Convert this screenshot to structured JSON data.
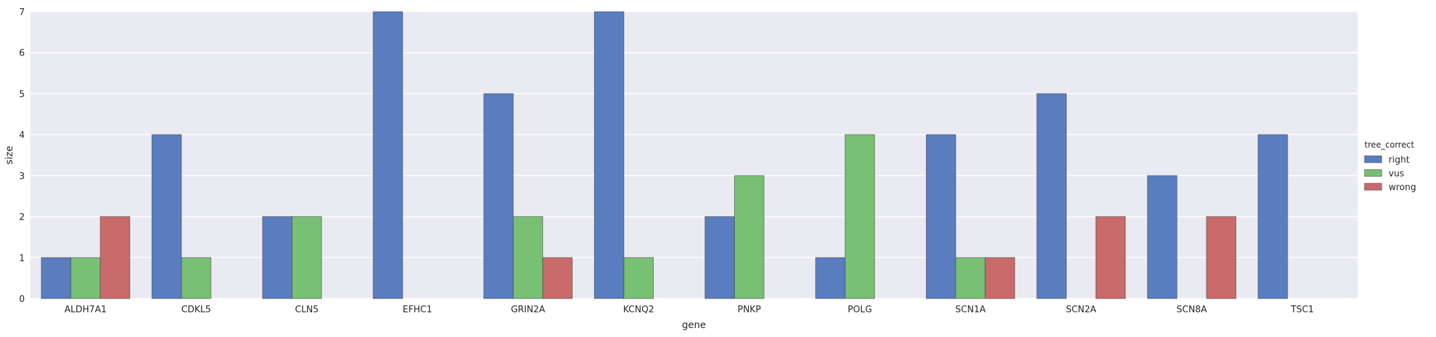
{
  "chart_data": {
    "type": "bar",
    "xlabel": "gene",
    "ylabel": "size",
    "ylim": [
      0,
      7
    ],
    "yticks": [
      0,
      1,
      2,
      3,
      4,
      5,
      6,
      7
    ],
    "grid": true,
    "legend_position": "right",
    "legend_title": "tree_correct",
    "categories": [
      "ALDH7A1",
      "CDKL5",
      "CLN5",
      "EFHC1",
      "GRIN2A",
      "KCNQ2",
      "PNKP",
      "POLG",
      "SCN1A",
      "SCN2A",
      "SCN8A",
      "TSC1"
    ],
    "series": [
      {
        "name": "right",
        "color": "#5a7dc0",
        "values": [
          1,
          4,
          2,
          7,
          5,
          7,
          2,
          1,
          4,
          5,
          3,
          4
        ]
      },
      {
        "name": "vus",
        "color": "#78c073",
        "values": [
          1,
          1,
          2,
          null,
          2,
          1,
          3,
          4,
          1,
          null,
          null,
          null
        ]
      },
      {
        "name": "wrong",
        "color": "#c96a6b",
        "values": [
          2,
          null,
          null,
          null,
          1,
          null,
          null,
          null,
          1,
          2,
          2,
          null
        ]
      }
    ],
    "background_color": "#eaeaf2"
  }
}
